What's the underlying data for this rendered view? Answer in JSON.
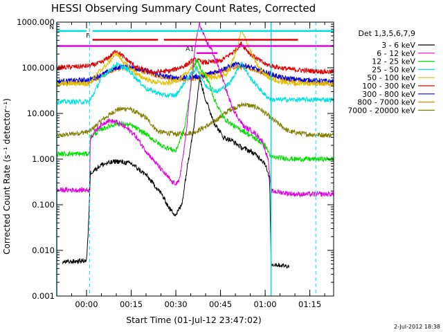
{
  "chart_data": {
    "type": "line",
    "title": "HESSI Observing Summary Count Rates, Corrected",
    "xlabel": "Start Time (01-Jul-12 23:47:02)",
    "ylabel": "Corrected Count Rate (s⁻¹ detector⁻¹)",
    "footer": "2-Jul-2012 18:38",
    "legend_title": "Det 1,3,5,6,7,9",
    "legend_position": "right",
    "yscale": "log",
    "ylim": [
      0.001,
      1000
    ],
    "xlim_minutes": [
      -10,
      83
    ],
    "x_ticks": [
      {
        "m": 0,
        "label": "00:00"
      },
      {
        "m": 15,
        "label": "00:15"
      },
      {
        "m": 30,
        "label": "00:30"
      },
      {
        "m": 45,
        "label": "00:45"
      },
      {
        "m": 60,
        "label": "01:00"
      },
      {
        "m": 75,
        "label": "01:15"
      }
    ],
    "y_ticks": [
      {
        "v": 1000,
        "label": "1000.000"
      },
      {
        "v": 100,
        "label": "100.000"
      },
      {
        "v": 10,
        "label": "10.000"
      },
      {
        "v": 1,
        "label": "1.000"
      },
      {
        "v": 0.1,
        "label": "0.100"
      },
      {
        "v": 0.01,
        "label": "0.010"
      },
      {
        "v": 0.001,
        "label": "0.001"
      }
    ],
    "night_boundaries_minutes": [
      -10,
      1,
      62,
      77
    ],
    "flag_bars": [
      {
        "label": "N",
        "color": "#00e0e0",
        "level": 640,
        "segments": [
          [
            -10,
            0
          ],
          [
            2,
            76
          ],
          [
            63,
            83
          ]
        ]
      },
      {
        "label": "F",
        "color": "#e00000",
        "level": 410,
        "segments": [
          [
            2,
            24
          ],
          [
            26,
            71
          ]
        ]
      },
      {
        "label": "",
        "color": "#e000e0",
        "level": 300,
        "segments": [
          [
            -10,
            77
          ],
          [
            77,
            83
          ]
        ]
      },
      {
        "label": "A1",
        "color": "#e000e0",
        "level": 210,
        "segments": [
          [
            37,
            44
          ]
        ]
      }
    ],
    "series": [
      {
        "name": "3 - 6 keV",
        "color": "#000000",
        "points": [
          [
            -8,
            0.0055
          ],
          [
            0,
            0.006
          ],
          [
            0.5,
            0.02
          ],
          [
            1.3,
            0.5
          ],
          [
            5,
            0.75
          ],
          [
            10,
            0.9
          ],
          [
            15,
            0.8
          ],
          [
            20,
            0.45
          ],
          [
            25,
            0.18
          ],
          [
            28,
            0.08
          ],
          [
            30,
            0.06
          ],
          [
            32,
            0.1
          ],
          [
            34,
            0.8
          ],
          [
            36,
            5
          ],
          [
            38,
            60
          ],
          [
            40,
            20
          ],
          [
            43,
            6
          ],
          [
            46,
            3
          ],
          [
            49,
            2.5
          ],
          [
            52,
            1.8
          ],
          [
            55,
            1.5
          ],
          [
            58,
            1.1
          ],
          [
            60,
            0.8
          ],
          [
            61.5,
            0.35
          ],
          [
            62,
            0.005
          ],
          [
            68,
            0.0045
          ]
        ]
      },
      {
        "name": "6 - 12 keV",
        "color": "#e000e0",
        "points": [
          [
            -10,
            0.21
          ],
          [
            1,
            0.21
          ],
          [
            1.3,
            3
          ],
          [
            4,
            5
          ],
          [
            7,
            7
          ],
          [
            10,
            6.5
          ],
          [
            13,
            5
          ],
          [
            16,
            3.5
          ],
          [
            20,
            1.5
          ],
          [
            25,
            0.6
          ],
          [
            29,
            0.3
          ],
          [
            31,
            0.3
          ],
          [
            33,
            2
          ],
          [
            35,
            40
          ],
          [
            37,
            500
          ],
          [
            38,
            900
          ],
          [
            40,
            400
          ],
          [
            42,
            250
          ],
          [
            45,
            80
          ],
          [
            48,
            20
          ],
          [
            50,
            10
          ],
          [
            53,
            5
          ],
          [
            56,
            4
          ],
          [
            59,
            2.5
          ],
          [
            61,
            1
          ],
          [
            62,
            0.2
          ],
          [
            70,
            0.17
          ],
          [
            83,
            0.17
          ]
        ]
      },
      {
        "name": "12 - 25 keV",
        "color": "#00e000",
        "points": [
          [
            -10,
            1.3
          ],
          [
            1,
            1.3
          ],
          [
            1.3,
            3
          ],
          [
            5,
            4.5
          ],
          [
            10,
            6
          ],
          [
            15,
            5.5
          ],
          [
            20,
            3.5
          ],
          [
            25,
            2
          ],
          [
            30,
            1.5
          ],
          [
            33,
            5
          ],
          [
            36,
            100
          ],
          [
            37,
            150
          ],
          [
            39,
            80
          ],
          [
            41,
            50
          ],
          [
            43,
            20
          ],
          [
            46,
            8
          ],
          [
            50,
            5
          ],
          [
            53,
            4
          ],
          [
            56,
            3
          ],
          [
            60,
            2
          ],
          [
            62,
            1.1
          ],
          [
            70,
            1
          ],
          [
            83,
            1
          ]
        ]
      },
      {
        "name": "25 - 50 keV",
        "color": "#00e0e0",
        "points": [
          [
            -10,
            18
          ],
          [
            1,
            18
          ],
          [
            5,
            60
          ],
          [
            10,
            120
          ],
          [
            14,
            90
          ],
          [
            20,
            35
          ],
          [
            26,
            25
          ],
          [
            30,
            25
          ],
          [
            34,
            60
          ],
          [
            37,
            100
          ],
          [
            40,
            40
          ],
          [
            44,
            30
          ],
          [
            48,
            45
          ],
          [
            52,
            130
          ],
          [
            55,
            60
          ],
          [
            60,
            25
          ],
          [
            62,
            20
          ],
          [
            70,
            20
          ],
          [
            83,
            20
          ]
        ]
      },
      {
        "name": "50 - 100 keV",
        "color": "#e0c000",
        "points": [
          [
            -10,
            45
          ],
          [
            1,
            45
          ],
          [
            4,
            80
          ],
          [
            7,
            120
          ],
          [
            10,
            210
          ],
          [
            13,
            120
          ],
          [
            17,
            70
          ],
          [
            22,
            50
          ],
          [
            27,
            45
          ],
          [
            31,
            55
          ],
          [
            34,
            80
          ],
          [
            36,
            120
          ],
          [
            38,
            80
          ],
          [
            42,
            60
          ],
          [
            47,
            70
          ],
          [
            50,
            200
          ],
          [
            52,
            650
          ],
          [
            54,
            350
          ],
          [
            57,
            120
          ],
          [
            60,
            70
          ],
          [
            64,
            50
          ],
          [
            70,
            45
          ],
          [
            83,
            45
          ]
        ]
      },
      {
        "name": "100 - 300 keV",
        "color": "#e00000",
        "points": [
          [
            -10,
            100
          ],
          [
            1,
            110
          ],
          [
            5,
            130
          ],
          [
            8,
            180
          ],
          [
            10,
            240
          ],
          [
            13,
            160
          ],
          [
            17,
            100
          ],
          [
            22,
            80
          ],
          [
            28,
            85
          ],
          [
            33,
            110
          ],
          [
            36,
            150
          ],
          [
            40,
            130
          ],
          [
            45,
            140
          ],
          [
            50,
            240
          ],
          [
            52,
            340
          ],
          [
            55,
            200
          ],
          [
            60,
            120
          ],
          [
            65,
            100
          ],
          [
            70,
            90
          ],
          [
            83,
            80
          ]
        ]
      },
      {
        "name": "300 - 800 keV",
        "color": "#0000e0",
        "points": [
          [
            -10,
            50
          ],
          [
            1,
            55
          ],
          [
            5,
            70
          ],
          [
            10,
            100
          ],
          [
            14,
            110
          ],
          [
            20,
            85
          ],
          [
            26,
            65
          ],
          [
            32,
            60
          ],
          [
            38,
            65
          ],
          [
            44,
            85
          ],
          [
            50,
            120
          ],
          [
            54,
            110
          ],
          [
            60,
            80
          ],
          [
            66,
            60
          ],
          [
            72,
            55
          ],
          [
            83,
            50
          ]
        ]
      },
      {
        "name": "800 - 7000 keV",
        "color": "#e08000",
        "points": [
          [
            -10,
            45
          ],
          [
            1,
            50
          ],
          [
            5,
            65
          ],
          [
            10,
            95
          ],
          [
            14,
            100
          ],
          [
            20,
            80
          ],
          [
            26,
            60
          ],
          [
            32,
            55
          ],
          [
            38,
            60
          ],
          [
            44,
            80
          ],
          [
            50,
            105
          ],
          [
            54,
            100
          ],
          [
            60,
            75
          ],
          [
            66,
            55
          ],
          [
            72,
            50
          ],
          [
            83,
            45
          ]
        ]
      },
      {
        "name": "7000 - 20000 keV",
        "color": "#808000",
        "points": [
          [
            -10,
            3.2
          ],
          [
            1,
            4
          ],
          [
            5,
            7
          ],
          [
            10,
            12
          ],
          [
            14,
            13
          ],
          [
            20,
            8
          ],
          [
            24,
            4
          ],
          [
            30,
            3.5
          ],
          [
            36,
            3.8
          ],
          [
            42,
            6
          ],
          [
            48,
            12
          ],
          [
            53,
            16
          ],
          [
            58,
            13
          ],
          [
            63,
            7
          ],
          [
            68,
            4
          ],
          [
            74,
            3.5
          ],
          [
            83,
            3.3
          ]
        ]
      }
    ]
  }
}
